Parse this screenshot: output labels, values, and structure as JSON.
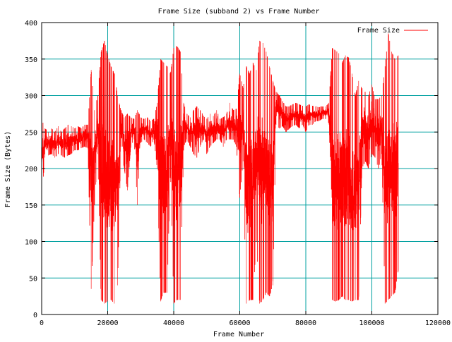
{
  "chart_data": {
    "type": "line",
    "title": "Frame Size (subband 2) vs Frame Number",
    "xlabel": "Frame Number",
    "ylabel": "Frame Size (Bytes)",
    "xlim": [
      0,
      120000
    ],
    "ylim": [
      0,
      400
    ],
    "x_ticks": [
      0,
      20000,
      40000,
      60000,
      80000,
      100000,
      120000
    ],
    "y_ticks": [
      0,
      50,
      100,
      150,
      200,
      250,
      300,
      350,
      400
    ],
    "grid": true,
    "legend_position": "top-right",
    "x_range_of_data": [
      0,
      108000
    ],
    "series": [
      {
        "name": "Frame Size",
        "color": "#ff0000",
        "x": [
          0,
          1000,
          2000,
          3000,
          4000,
          5000,
          6000,
          7000,
          8000,
          9000,
          10000,
          11000,
          12000,
          13000,
          14000,
          15000,
          16000,
          17000,
          18000,
          19000,
          20000,
          21000,
          22000,
          23000,
          24000,
          25000,
          26000,
          27000,
          28000,
          29000,
          30000,
          31000,
          32000,
          33000,
          34000,
          35000,
          36000,
          37000,
          38000,
          39000,
          40000,
          41000,
          42000,
          43000,
          44000,
          45000,
          46000,
          47000,
          48000,
          49000,
          50000,
          51000,
          52000,
          53000,
          54000,
          55000,
          56000,
          57000,
          58000,
          59000,
          60000,
          61000,
          62000,
          63000,
          64000,
          65000,
          66000,
          67000,
          68000,
          69000,
          70000,
          71000,
          72000,
          73000,
          74000,
          75000,
          76000,
          77000,
          78000,
          79000,
          80000,
          81000,
          82000,
          83000,
          84000,
          85000,
          86000,
          87000,
          88000,
          89000,
          90000,
          91000,
          92000,
          93000,
          94000,
          95000,
          96000,
          97000,
          98000,
          99000,
          100000,
          101000,
          102000,
          103000,
          104000,
          105000,
          106000,
          107000,
          108000
        ],
        "y_low": [
          160,
          215,
          218,
          220,
          215,
          220,
          218,
          215,
          218,
          220,
          225,
          225,
          228,
          230,
          228,
          35,
          150,
          220,
          20,
          15,
          18,
          20,
          15,
          40,
          230,
          200,
          170,
          230,
          240,
          150,
          235,
          240,
          235,
          230,
          240,
          200,
          18,
          30,
          30,
          200,
          15,
          20,
          20,
          230,
          240,
          230,
          220,
          215,
          230,
          240,
          220,
          230,
          235,
          240,
          240,
          230,
          240,
          240,
          240,
          230,
          160,
          210,
          15,
          20,
          20,
          100,
          15,
          20,
          30,
          25,
          40,
          260,
          255,
          258,
          250,
          255,
          258,
          260,
          255,
          260,
          250,
          260,
          260,
          265,
          265,
          268,
          268,
          262,
          20,
          18,
          20,
          25,
          20,
          20,
          18,
          20,
          20,
          200,
          210,
          200,
          220,
          215,
          200,
          220,
          15,
          20,
          25,
          30,
          60
        ],
        "y_high": [
          268,
          255,
          250,
          255,
          250,
          258,
          250,
          255,
          260,
          258,
          255,
          258,
          255,
          260,
          260,
          335,
          280,
          300,
          360,
          375,
          355,
          340,
          330,
          300,
          280,
          270,
          275,
          270,
          268,
          280,
          270,
          268,
          270,
          265,
          268,
          290,
          350,
          345,
          340,
          330,
          365,
          368,
          360,
          290,
          275,
          270,
          280,
          285,
          280,
          272,
          268,
          275,
          272,
          280,
          268,
          270,
          275,
          290,
          280,
          282,
          330,
          310,
          340,
          330,
          345,
          335,
          375,
          372,
          360,
          340,
          320,
          305,
          300,
          292,
          285,
          285,
          288,
          290,
          288,
          286,
          285,
          288,
          286,
          285,
          284,
          285,
          285,
          290,
          365,
          362,
          358,
          345,
          355,
          352,
          330,
          300,
          320,
          310,
          305,
          300,
          315,
          295,
          295,
          300,
          340,
          385,
          360,
          350,
          355
        ]
      }
    ]
  }
}
